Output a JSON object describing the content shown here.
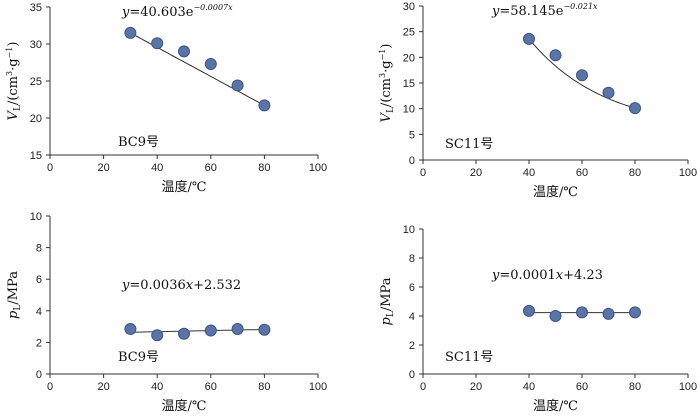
{
  "chart_data": [
    {
      "type": "scatter",
      "id": "vl-bc9",
      "tag": "BC9号",
      "xlabel": "温度/℃",
      "ylabel_main": "V",
      "ylabel_sub": "L",
      "ylabel_rest": "/(cm",
      "ylabel_sup": "3",
      "ylabel_tail": "·g",
      "ylabel_sup2": "−1",
      "ylabel_end": ")",
      "xlim": [
        0,
        100
      ],
      "xticks": [
        0,
        20,
        40,
        60,
        80,
        100
      ],
      "ylim": [
        15,
        35
      ],
      "yticks": [
        15,
        20,
        25,
        30,
        35
      ],
      "x": [
        30,
        40,
        50,
        60,
        70,
        80
      ],
      "y": [
        31.5,
        30.1,
        29.0,
        27.3,
        24.4,
        21.7
      ],
      "fit": {
        "kind": "exp",
        "a": 40.603,
        "b": -0.0007,
        "xrange": [
          30,
          80
        ]
      },
      "equation": {
        "lhs": "y",
        "mid": "=40.603e",
        "exp": "−0.0007x"
      }
    },
    {
      "type": "scatter",
      "id": "vl-sc11",
      "tag": "SC11号",
      "xlabel": "温度/℃",
      "ylabel_main": "V",
      "ylabel_sub": "L",
      "ylabel_rest": "/(cm",
      "ylabel_sup": "3",
      "ylabel_tail": "·g",
      "ylabel_sup2": "−1",
      "ylabel_end": ")",
      "xlim": [
        0,
        100
      ],
      "xticks": [
        0,
        20,
        40,
        60,
        80,
        100
      ],
      "ylim": [
        0,
        30
      ],
      "yticks": [
        0,
        5,
        10,
        15,
        20,
        25,
        30
      ],
      "x": [
        40,
        50,
        60,
        70,
        80
      ],
      "y": [
        23.6,
        20.4,
        16.5,
        13.1,
        10.1
      ],
      "fit": {
        "kind": "exp",
        "a": 58.145,
        "b": -0.021,
        "xrange": [
          40,
          80
        ]
      },
      "equation": {
        "lhs": "y",
        "mid": "=58.145e",
        "exp": "−0.021x"
      }
    },
    {
      "type": "scatter",
      "id": "pl-bc9",
      "tag": "BC9号",
      "xlabel": "温度/℃",
      "ylabel_main": "p",
      "ylabel_sub": "L",
      "ylabel_rest": "/MPa",
      "xlim": [
        0,
        100
      ],
      "xticks": [
        0,
        20,
        40,
        60,
        80,
        100
      ],
      "ylim": [
        0,
        10
      ],
      "yticks": [
        0,
        2,
        4,
        6,
        8,
        10
      ],
      "x": [
        30,
        40,
        50,
        60,
        70,
        80
      ],
      "y": [
        2.85,
        2.45,
        2.55,
        2.75,
        2.85,
        2.8
      ],
      "fit": {
        "kind": "linear",
        "m": 0.0036,
        "c": 2.532,
        "xrange": [
          30,
          80
        ]
      },
      "equation": {
        "lhs": "y",
        "mid": "=0.0036",
        "x": "x",
        "tail": "+2.532"
      }
    },
    {
      "type": "scatter",
      "id": "pl-sc11",
      "tag": "SC11号",
      "xlabel": "温度/℃",
      "ylabel_main": "p",
      "ylabel_sub": "L",
      "ylabel_rest": "/MPa",
      "xlim": [
        0,
        100
      ],
      "xticks": [
        0,
        20,
        40,
        60,
        80,
        100
      ],
      "ylim": [
        0,
        10
      ],
      "yticks": [
        0,
        2,
        4,
        6,
        8,
        10
      ],
      "x": [
        40,
        50,
        60,
        70,
        80
      ],
      "y": [
        4.35,
        4.0,
        4.25,
        4.15,
        4.25
      ],
      "fit": {
        "kind": "linear",
        "m": 0.0001,
        "c": 4.23,
        "xrange": [
          40,
          80
        ]
      },
      "equation": {
        "lhs": "y",
        "mid": "=0.0001",
        "x": "x",
        "tail": "+4.23"
      }
    }
  ],
  "colors": {
    "marker_fill": "#5b74a8",
    "marker_stroke": "#3f5486",
    "axis": "#333333",
    "fit_line": "#333333"
  }
}
